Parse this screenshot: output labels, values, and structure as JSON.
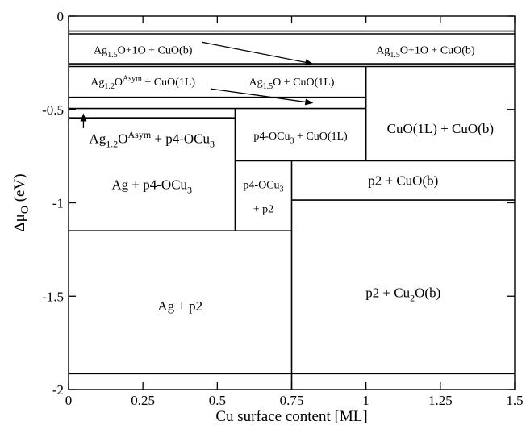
{
  "chart_data": {
    "type": "phase-diagram",
    "xlabel": "Cu surface content [ML]",
    "ylabel_main": "Δμ",
    "ylabel_sub": "O",
    "ylabel_unit": " (eV)",
    "xlim": [
      0,
      1.5
    ],
    "ylim": [
      -2,
      0
    ],
    "x_ticks": [
      {
        "value": 0,
        "label": "0"
      },
      {
        "value": 0.25,
        "label": "0.25"
      },
      {
        "value": 0.5,
        "label": "0.5"
      },
      {
        "value": 0.75,
        "label": "0.75"
      },
      {
        "value": 1,
        "label": "1"
      },
      {
        "value": 1.25,
        "label": "1.25"
      },
      {
        "value": 1.5,
        "label": "1.5"
      }
    ],
    "y_ticks": [
      {
        "value": 0,
        "label": "0"
      },
      {
        "value": -0.5,
        "label": "-0.5"
      },
      {
        "value": -1,
        "label": "-1"
      },
      {
        "value": -1.5,
        "label": "-1.5"
      },
      {
        "value": -2,
        "label": "-2"
      }
    ],
    "boundaries": [
      {
        "x1": 0,
        "x2": 1.5,
        "y1": -0.08,
        "y2": -0.08
      },
      {
        "x1": 0,
        "x2": 1.5,
        "y1": -0.095,
        "y2": -0.095
      },
      {
        "x1": 0,
        "x2": 1.5,
        "y1": -0.255,
        "y2": -0.255
      },
      {
        "x1": 0,
        "x2": 1.5,
        "y1": -0.27,
        "y2": -0.27
      },
      {
        "x1": 0,
        "x2": 1.0,
        "y1": -0.435,
        "y2": -0.435
      },
      {
        "x1": 0,
        "x2": 1.0,
        "y1": -0.495,
        "y2": -0.495
      },
      {
        "x1": 0,
        "x2": 0.56,
        "y1": -0.545,
        "y2": -0.545
      },
      {
        "x1": 0.56,
        "x2": 1.5,
        "y1": -0.775,
        "y2": -0.775
      },
      {
        "x1": 0.75,
        "x2": 1.5,
        "y1": -0.985,
        "y2": -0.985
      },
      {
        "x1": 0,
        "x2": 0.75,
        "y1": -1.15,
        "y2": -1.15
      },
      {
        "x1": 0,
        "x2": 1.5,
        "y1": -1.915,
        "y2": -1.915
      },
      {
        "x1": 1.0,
        "x2": 1.0,
        "y1": -0.27,
        "y2": -0.775
      },
      {
        "x1": 0.56,
        "x2": 0.56,
        "y1": -0.495,
        "y2": -1.15
      },
      {
        "x1": 0.75,
        "x2": 0.75,
        "y1": -0.775,
        "y2": -2
      }
    ],
    "arrows": [
      {
        "x1": 0.45,
        "y1": -0.14,
        "x2": 0.82,
        "y2": -0.255
      },
      {
        "x1": 0.48,
        "y1": -0.39,
        "x2": 0.82,
        "y2": -0.465
      },
      {
        "x1": 0.05,
        "y1": -0.6,
        "x2": 0.05,
        "y2": -0.525
      }
    ],
    "labels": [
      {
        "x": 0.25,
        "y": -0.18,
        "size": 14,
        "parts": [
          [
            "Ag",
            ""
          ],
          [
            "1.5",
            "sub"
          ],
          [
            "O+1O + CuO(b)",
            ""
          ]
        ]
      },
      {
        "x": 1.2,
        "y": -0.18,
        "size": 14,
        "parts": [
          [
            "Ag",
            ""
          ],
          [
            "1.5",
            "sub"
          ],
          [
            "O+1O + CuO(b)",
            ""
          ]
        ]
      },
      {
        "x": 0.25,
        "y": -0.35,
        "size": 14,
        "parts": [
          [
            "Ag",
            ""
          ],
          [
            "1.2",
            "sub"
          ],
          [
            "O",
            ""
          ],
          [
            "Asym",
            "sup"
          ],
          [
            " + CuO(1L)",
            ""
          ]
        ]
      },
      {
        "x": 0.75,
        "y": -0.35,
        "size": 14,
        "parts": [
          [
            "Ag",
            ""
          ],
          [
            "1.5",
            "sub"
          ],
          [
            "O + CuO(1L)",
            ""
          ]
        ]
      },
      {
        "x": 1.25,
        "y": -0.6,
        "size": 17,
        "parts": [
          [
            "CuO(1L) + CuO(b)",
            ""
          ]
        ]
      },
      {
        "x": 0.78,
        "y": -0.64,
        "size": 14,
        "parts": [
          [
            "p4-OCu",
            ""
          ],
          [
            "3",
            "sub"
          ],
          [
            " + CuO(1L)",
            ""
          ]
        ]
      },
      {
        "x": 0.28,
        "y": -0.655,
        "size": 17,
        "parts": [
          [
            "Ag",
            ""
          ],
          [
            "1.2",
            "sub"
          ],
          [
            "O",
            ""
          ],
          [
            "Asym",
            "sup"
          ],
          [
            " + p4-OCu",
            ""
          ],
          [
            "3",
            "sub"
          ]
        ]
      },
      {
        "x": 0.28,
        "y": -0.9,
        "size": 17,
        "parts": [
          [
            "Ag + p4-OCu",
            ""
          ],
          [
            "3",
            "sub"
          ]
        ]
      },
      {
        "x": 0.655,
        "y": -0.9,
        "size": 14,
        "parts": [
          [
            "p4-OCu",
            ""
          ],
          [
            "3",
            "sub"
          ]
        ]
      },
      {
        "x": 0.655,
        "y": -1.03,
        "size": 14,
        "parts": [
          [
            "+ p2",
            ""
          ]
        ]
      },
      {
        "x": 1.125,
        "y": -0.88,
        "size": 17,
        "parts": [
          [
            "p2 + CuO(b)",
            ""
          ]
        ]
      },
      {
        "x": 0.375,
        "y": -1.55,
        "size": 17,
        "parts": [
          [
            "Ag + p2",
            ""
          ]
        ]
      },
      {
        "x": 1.125,
        "y": -1.48,
        "size": 17,
        "parts": [
          [
            "p2 + Cu",
            ""
          ],
          [
            "2",
            "sub"
          ],
          [
            "O(b)",
            ""
          ]
        ]
      }
    ]
  }
}
